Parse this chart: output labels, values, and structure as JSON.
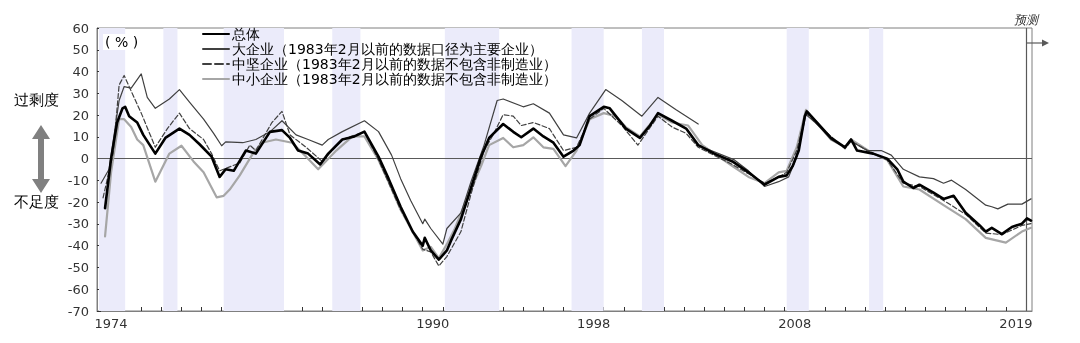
{
  "chart_data": {
    "type": "line",
    "ylabel": "( % )",
    "xlim": [
      1973.8,
      2020.3
    ],
    "ylim": [
      -70,
      60
    ],
    "yticks": [
      -70,
      -60,
      -50,
      -40,
      -30,
      -20,
      -10,
      0,
      10,
      20,
      30,
      40,
      50,
      60
    ],
    "xticks": [
      {
        "value": 1974.5,
        "label": "1974"
      },
      {
        "value": 1990.5,
        "label": "1990"
      },
      {
        "value": 1998.5,
        "label": "1998"
      },
      {
        "value": 2008.5,
        "label": "2008"
      },
      {
        "value": 2019.5,
        "label": "2019"
      },
      {
        "value": 1974,
        "label": null
      },
      {
        "value": 1975,
        "label": null
      },
      {
        "value": 1976,
        "label": null
      },
      {
        "value": 1977,
        "label": null
      },
      {
        "value": 1978,
        "label": null
      },
      {
        "value": 1979,
        "label": null
      },
      {
        "value": 1980,
        "label": null
      },
      {
        "value": 1981,
        "label": null
      },
      {
        "value": 1982,
        "label": null
      },
      {
        "value": 1983,
        "label": null
      },
      {
        "value": 1984,
        "label": null
      },
      {
        "value": 1985,
        "label": null
      },
      {
        "value": 1986,
        "label": null
      },
      {
        "value": 1987,
        "label": null
      },
      {
        "value": 1988,
        "label": null
      },
      {
        "value": 1989,
        "label": null
      },
      {
        "value": 1990,
        "label": null
      },
      {
        "value": 1991,
        "label": null
      },
      {
        "value": 1992,
        "label": null
      },
      {
        "value": 1993,
        "label": null
      },
      {
        "value": 1994,
        "label": null
      },
      {
        "value": 1995,
        "label": null
      },
      {
        "value": 1996,
        "label": null
      },
      {
        "value": 1997,
        "label": null
      },
      {
        "value": 1998,
        "label": null
      },
      {
        "value": 1999,
        "label": null
      },
      {
        "value": 2000,
        "label": null
      },
      {
        "value": 2001,
        "label": null
      },
      {
        "value": 2002,
        "label": null
      },
      {
        "value": 2003,
        "label": null
      },
      {
        "value": 2004,
        "label": null
      },
      {
        "value": 2005,
        "label": null
      },
      {
        "value": 2006,
        "label": null
      },
      {
        "value": 2007,
        "label": null
      },
      {
        "value": 2008,
        "label": null
      },
      {
        "value": 2009,
        "label": null
      },
      {
        "value": 2010,
        "label": null
      },
      {
        "value": 2011,
        "label": null
      },
      {
        "value": 2012,
        "label": null
      },
      {
        "value": 2013,
        "label": null
      },
      {
        "value": 2014,
        "label": null
      },
      {
        "value": 2015,
        "label": null
      },
      {
        "value": 2016,
        "label": null
      },
      {
        "value": 2017,
        "label": null
      },
      {
        "value": 2018,
        "label": null
      },
      {
        "value": 2019,
        "label": null
      },
      {
        "value": 2020,
        "label": null
      }
    ],
    "grid": false,
    "legend": "top left",
    "marker": "none",
    "line_style": "solid",
    "annotations": [
      "过剩度",
      "不足度"
    ],
    "ref_lines": [
      {
        "axis": "y",
        "value": 0,
        "label": null,
        "color": "#595959"
      },
      {
        "axis": "x",
        "value": 2020,
        "label": "预测",
        "color": "#595959"
      }
    ],
    "bands": [
      {
        "axis": "x",
        "from": 1973.9,
        "to": 1975.2,
        "label": null,
        "color": "#ebebfa"
      },
      {
        "axis": "x",
        "from": 1977.1,
        "to": 1977.8,
        "label": null,
        "color": "#ebebfa"
      },
      {
        "axis": "x",
        "from": 1980.1,
        "to": 1983.1,
        "label": null,
        "color": "#ebebfa"
      },
      {
        "axis": "x",
        "from": 1985.5,
        "to": 1986.9,
        "label": null,
        "color": "#ebebfa"
      },
      {
        "axis": "x",
        "from": 1991.1,
        "to": 1993.8,
        "label": null,
        "color": "#ebebfa"
      },
      {
        "axis": "x",
        "from": 1997.4,
        "to": 1999.0,
        "label": null,
        "color": "#ebebfa"
      },
      {
        "axis": "x",
        "from": 2000.9,
        "to": 2002.0,
        "label": null,
        "color": "#ebebfa"
      },
      {
        "axis": "x",
        "from": 2008.1,
        "to": 2009.2,
        "label": null,
        "color": "#ebebfa"
      },
      {
        "axis": "x",
        "from": 2012.2,
        "to": 2012.9,
        "label": null,
        "color": "#ebebfa"
      }
    ],
    "series": [
      {
        "name": "总体",
        "color": "#000000",
        "x": [
          1974.2,
          1974.5,
          1974.8,
          1975.07,
          1975.2,
          1975.4,
          1975.8,
          1976.1,
          1976.7,
          1977.2,
          1977.9,
          1978.4,
          1978.9,
          1979.5,
          1979.9,
          1980.2,
          1980.6,
          1981.2,
          1981.7,
          1982.4,
          1983.0,
          1983.4,
          1983.8,
          1984.3,
          1984.9,
          1985.3,
          1986.0,
          1986.6,
          1987.1,
          1987.8,
          1988.3,
          1988.9,
          1989.5,
          1990.0,
          1990.1,
          1990.4,
          1990.8,
          1991.2,
          1991.4,
          1991.9,
          1992.4,
          1992.9,
          1993.3,
          1994.0,
          1994.5,
          1994.9,
          1995.5,
          1996.0,
          1996.5,
          1997.0,
          1997.5,
          1997.8,
          1998.3,
          1999.0,
          1999.3,
          2000.1,
          2000.8,
          2001.3,
          2001.7,
          2002.4,
          2003.1,
          2003.7,
          2004.5,
          2005.4,
          2006.2,
          2007.0,
          2007.7,
          2008.1,
          2008.4,
          2008.7,
          2009.0,
          2009.1,
          2009.6,
          2010.3,
          2011.0,
          2011.3,
          2011.6,
          2012.4,
          2013.1,
          2013.6,
          2013.9,
          2014.4,
          2014.7,
          2015.4,
          2015.9,
          2016.4,
          2017.0,
          2017.7,
          2018.0,
          2018.3,
          2018.8,
          2019.3,
          2019.8,
          2020.05,
          2020.25
        ],
        "values": [
          -22.8,
          0,
          16.6,
          23.1,
          23.8,
          19.5,
          16.6,
          10.9,
          2.3,
          9.5,
          13.8,
          10.9,
          6.6,
          0.9,
          -8.4,
          -4.9,
          -5.6,
          3.7,
          2.3,
          12.3,
          13.1,
          9.5,
          3.7,
          2.3,
          -2.7,
          2.3,
          8.8,
          10.2,
          12.4,
          0.9,
          -9.2,
          -22.1,
          -33.5,
          -40,
          -36.4,
          -42.2,
          -46.4,
          -42.2,
          -37.8,
          -27.8,
          -13.5,
          0.9,
          9.5,
          15.9,
          12.3,
          9.8,
          13.8,
          10.2,
          7.3,
          0.9,
          3.7,
          6.2,
          19.5,
          23.8,
          23.1,
          13.8,
          9.5,
          15.2,
          20.9,
          17.4,
          13.8,
          6.2,
          2.3,
          -1.3,
          -6.3,
          -12.0,
          -8.4,
          -7.7,
          -3.4,
          3.7,
          19.5,
          21.7,
          16.6,
          9.5,
          5.2,
          8.8,
          3.7,
          2.3,
          0,
          -4.9,
          -10.6,
          -13.5,
          -12.0,
          -15.6,
          -18.5,
          -17.1,
          -24.9,
          -30.7,
          -33.5,
          -31.8,
          -34.7,
          -31.4,
          -29.9,
          -27.4,
          -28.5
        ]
      },
      {
        "name": "大企业（1983年2月以前的数据口径为主要企业）",
        "color": "#404040",
        "x": [
          1974.0,
          1974.4,
          1974.9,
          1975.15,
          1975.5,
          1976.0,
          1976.3,
          1976.7,
          1977.4,
          1977.9,
          1978.4,
          1979.1,
          1979.6,
          1980.0,
          1980.2,
          1981.05,
          1981.7,
          1982.4,
          1983.0,
          1983.7,
          1984.3,
          1985.0,
          1985.3,
          1986.0,
          1987.1,
          1987.8,
          1988.45,
          1988.9,
          1989.4,
          1990.0,
          1990.1,
          1990.4,
          1991.0,
          1991.2,
          1991.9,
          1992.4,
          1993.05,
          1993.7,
          1994.0,
          1995.0,
          1995.5,
          1996.3,
          1997.0,
          1997.65,
          1998.3,
          1999.1,
          1999.9,
          2000.9,
          2001.7,
          2002.6,
          2003.7,
          2003.85,
          2004.0,
          2005.5,
          2006.2,
          2007.0,
          2007.7,
          2008.2,
          2008.6,
          2009.06,
          2009.6,
          2010.3,
          2011.0,
          2011.3,
          2012.1,
          2012.8,
          2013.3,
          2013.9,
          2014.7,
          2015.4,
          2015.9,
          2016.3,
          2017.0,
          2018.0,
          2018.3,
          2018.6,
          2019.1,
          2019.8,
          2020.25
        ],
        "values": [
          -11.3,
          -4.9,
          26.7,
          33.1,
          32.4,
          38.9,
          28.1,
          23.1,
          27.4,
          31.7,
          26.0,
          18.1,
          11.6,
          5.9,
          7.7,
          7.3,
          8.8,
          12.3,
          17.4,
          10.9,
          8.8,
          6.2,
          8.8,
          12.4,
          17.4,
          12.4,
          1.6,
          -9.2,
          -19.2,
          -29.9,
          -27.8,
          -32.1,
          -39.3,
          -32.1,
          -24.9,
          -10.6,
          6.2,
          26.7,
          27.4,
          23.8,
          25.2,
          20.9,
          10.9,
          9.5,
          20.9,
          31.7,
          26.7,
          19.5,
          28.1,
          22.4,
          15.9,
          null,
          5,
          -0.6,
          -5.6,
          -12.8,
          -10.6,
          -8.4,
          0.9,
          20.2,
          15.9,
          8.8,
          5.2,
          8.0,
          3.7,
          3.7,
          1.6,
          -4.9,
          -8.4,
          -9.2,
          -11.3,
          -9.9,
          -14.2,
          -21.4,
          -22.1,
          -23.1,
          -20.9,
          -20.9,
          -18.5
        ]
      },
      {
        "name": "中坚企业（1983年2月以前的数据不包含非制造业）",
        "color": "#404040",
        "line_style": "dashed",
        "x": [
          1974.1,
          1974.6,
          1974.9,
          1975.15,
          1975.5,
          1976.0,
          1976.7,
          1977.3,
          1977.9,
          1978.4,
          1979.1,
          1979.5,
          1979.9,
          1980.2,
          1980.9,
          1981.4,
          1981.7,
          1982.5,
          1983.0,
          1983.4,
          1984.2,
          1985.0,
          1986.0,
          1987.1,
          1987.8,
          1988.9,
          1990.0,
          1990.4,
          1990.8,
          1991.2,
          1991.9,
          1992.4,
          1993.05,
          1993.5,
          1994.0,
          1994.5,
          1994.9,
          1995.5,
          1996.3,
          1997.0,
          1997.65,
          1998.3,
          1999.0,
          1999.9,
          2000.7,
          2001.7,
          2002.4,
          2003.1,
          2003.7,
          2005.4,
          2006.2,
          2007.0,
          2007.7,
          2008.1,
          2008.6,
          2009.06,
          2009.6,
          2011.0,
          2011.3,
          2012.4,
          2013.1,
          2013.9,
          2014.7,
          2015.9,
          2017.0,
          2018.0,
          2018.8,
          2019.8,
          2020.25
        ],
        "values": [
          -18,
          2.3,
          33.8,
          38.2,
          31.0,
          20.9,
          5.2,
          13.8,
          20.9,
          13.8,
          8.8,
          2.3,
          -5.6,
          -4.5,
          -2.0,
          6.2,
          3.7,
          16.6,
          21.7,
          10.9,
          5.2,
          -1.3,
          8.8,
          12.3,
          -0.6,
          -23.5,
          -41.6,
          -42.9,
          -49.3,
          -45.0,
          -33.5,
          -16.3,
          3.7,
          10.9,
          20.2,
          19.5,
          15.2,
          16.6,
          13.8,
          3.7,
          5.2,
          18.1,
          23.1,
          15.2,
          6.2,
          19.5,
          14.5,
          11.6,
          5.2,
          -2.7,
          -7.0,
          -11.3,
          -8.4,
          -6.3,
          3.7,
          21.0,
          15.9,
          4.5,
          8.0,
          2.3,
          -0.6,
          -11.3,
          -12.8,
          -19.2,
          -25.6,
          -34.2,
          -34.9,
          -30.7,
          -29.9
        ]
      },
      {
        "name": "中小企业（1983年2月以前的数据不包含非制造业）",
        "color": "#a6a6a6",
        "x": [
          1974.2,
          1974.5,
          1974.9,
          1975.15,
          1975.5,
          1975.8,
          1976.1,
          1976.7,
          1977.4,
          1978.0,
          1978.6,
          1979.1,
          1979.75,
          1980.1,
          1980.4,
          1980.9,
          1981.55,
          1982.0,
          1982.7,
          1983.5,
          1984.2,
          1984.8,
          1985.7,
          1986.5,
          1987.1,
          1987.8,
          1988.3,
          1988.9,
          1990.0,
          1990.4,
          1990.8,
          1991.2,
          1991.6,
          1992.1,
          1992.9,
          1993.3,
          1994.0,
          1994.5,
          1995.0,
          1995.5,
          1996.0,
          1996.5,
          1997.1,
          1997.65,
          1998.3,
          1999.0,
          1999.6,
          2000.1,
          2000.8,
          2001.7,
          2002.4,
          2003.2,
          2003.9,
          2005.4,
          2006.2,
          2007.0,
          2007.7,
          2008.1,
          2008.6,
          2009.06,
          2009.6,
          2010.3,
          2011.0,
          2011.3,
          2012.4,
          2013.1,
          2013.9,
          2014.7,
          2015.9,
          2017.0,
          2018.0,
          2019.0,
          2019.8,
          2020.25
        ],
        "values": [
          -35.7,
          -6.3,
          18.1,
          18.1,
          14.5,
          8.8,
          6.2,
          -10.6,
          2.3,
          5.9,
          -1.3,
          -6.3,
          -17.8,
          -17.1,
          -14.2,
          -7.7,
          2.3,
          7.3,
          8.8,
          7.3,
          0.9,
          -4.9,
          3.7,
          10.2,
          10.2,
          -0.6,
          -10.6,
          -23.5,
          -42.2,
          -40.5,
          -45.7,
          -39.3,
          -32.1,
          -20.6,
          -3.4,
          6.2,
          9.5,
          5.2,
          6.2,
          9.8,
          5.2,
          4.5,
          -3.4,
          3.7,
          18.1,
          20.9,
          19.5,
          14.5,
          10.2,
          20.2,
          16.6,
          15.2,
          6.2,
          -3.4,
          -8.4,
          -11.3,
          -6.3,
          -5.6,
          5.2,
          22.4,
          16.6,
          8.8,
          5.2,
          8.8,
          2.3,
          -0.6,
          -12.8,
          -14.2,
          -21.4,
          -27.8,
          -36.4,
          -38.6,
          -33.5,
          -31.8
        ]
      }
    ]
  }
}
